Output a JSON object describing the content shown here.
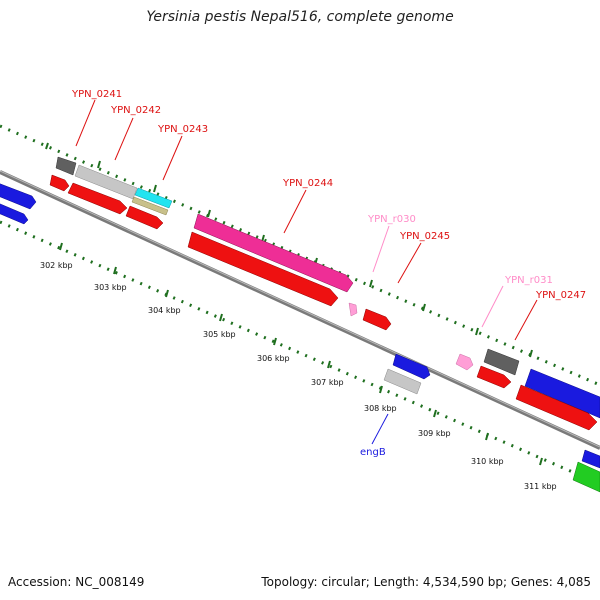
{
  "title": "Yersinia pestis Nepal516, complete genome",
  "footer": {
    "accession": "Accession: NC_008149",
    "summary": "Topology: circular; Length: 4,534,590 bp; Genes: 4,085"
  },
  "colors": {
    "red": "#ee1111",
    "blue": "#1a1adf",
    "gray": "#bdbdbd",
    "darkgray": "#606060",
    "pink": "#ff9ed6",
    "magenta": "#ee2e96",
    "cyan": "#22e4f0",
    "khaki": "#c8c08a",
    "green": "#22cc22",
    "ruler_tick": "#1f6f1f"
  },
  "kbp_labels": [
    "302 kbp",
    "303 kbp",
    "304 kbp",
    "305 kbp",
    "306 kbp",
    "307 kbp",
    "308 kbp",
    "309 kbp",
    "310 kbp",
    "311 kbp"
  ],
  "gene_labels": [
    {
      "text": "YPN_0241",
      "color": "#dd1111"
    },
    {
      "text": "YPN_0242",
      "color": "#dd1111"
    },
    {
      "text": "YPN_0243",
      "color": "#dd1111"
    },
    {
      "text": "YPN_0244",
      "color": "#dd1111"
    },
    {
      "text": "YPN_r030",
      "color": "#ff8cc8"
    },
    {
      "text": "YPN_0245",
      "color": "#dd1111"
    },
    {
      "text": "YPN_r031",
      "color": "#ff8cc8"
    },
    {
      "text": "YPN_0247",
      "color": "#dd1111"
    },
    {
      "text": "engB",
      "color": "#1a1adf"
    }
  ]
}
